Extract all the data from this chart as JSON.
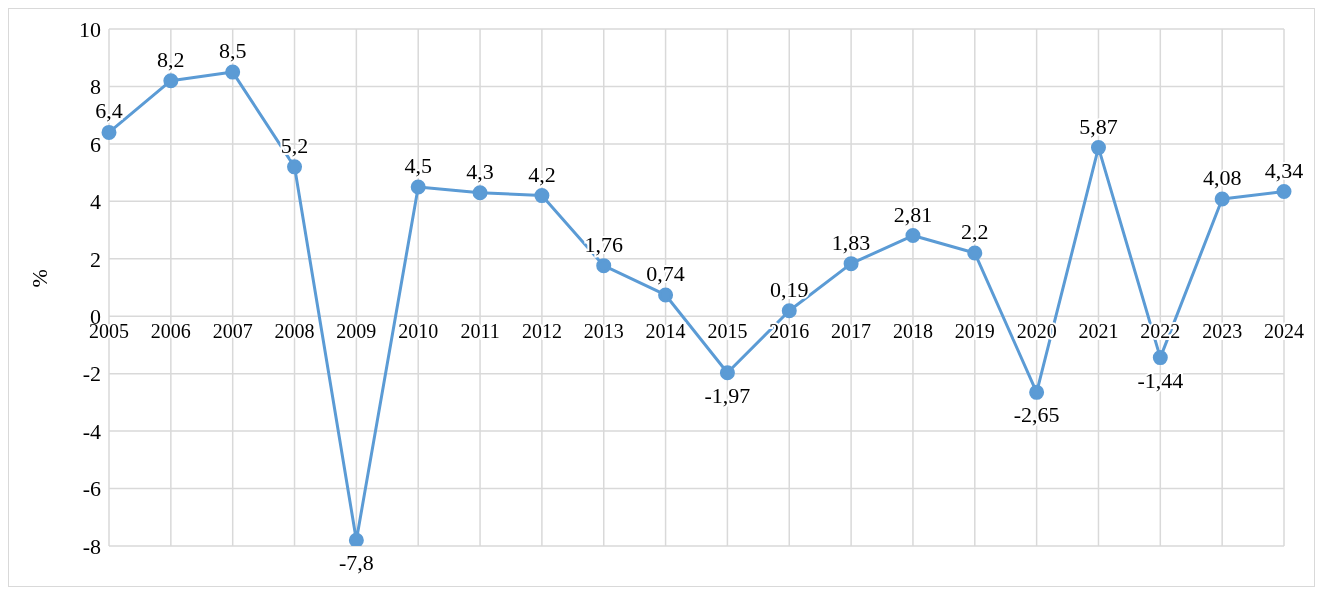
{
  "chart_data": {
    "type": "line",
    "ylabel": "%",
    "categories": [
      "2005",
      "2006",
      "2007",
      "2008",
      "2009",
      "2010",
      "2011",
      "2012",
      "2013",
      "2014",
      "2015",
      "2016",
      "2017",
      "2018",
      "2019",
      "2020",
      "2021",
      "2022",
      "2023",
      "2024"
    ],
    "series": [
      {
        "color": "#5b9bd5",
        "values": [
          6.4,
          8.2,
          8.5,
          5.2,
          -7.8,
          4.5,
          4.3,
          4.2,
          1.76,
          0.74,
          -1.97,
          0.19,
          1.83,
          2.81,
          2.2,
          -2.65,
          5.87,
          -1.44,
          4.08,
          4.34
        ],
        "value_labels": [
          "6,4",
          "8,2",
          "8,5",
          "5,2",
          "-7,8",
          "4,5",
          "4,3",
          "4,2",
          "1,76",
          "0,74",
          "-1,97",
          "0,19",
          "1,83",
          "2,81",
          "2,2",
          "-2,65",
          "5,87",
          "-1,44",
          "4,08",
          "4,34"
        ]
      }
    ],
    "ylim": [
      -8,
      10
    ],
    "yticks": [
      -8,
      -6,
      -4,
      -2,
      0,
      2,
      4,
      6,
      8,
      10
    ],
    "grid": true,
    "marker": "circle",
    "line_style": "solid"
  }
}
